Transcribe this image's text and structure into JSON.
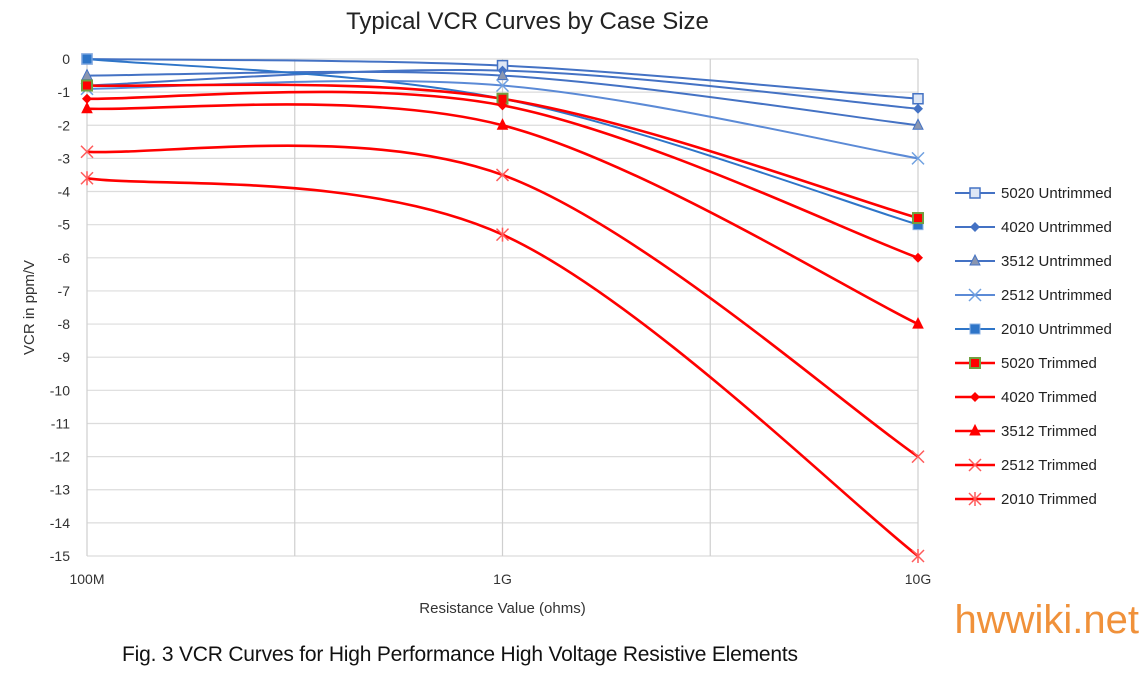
{
  "chart_data": {
    "type": "line",
    "title": "Typical VCR Curves by Case Size",
    "xlabel": "Resistance Value (ohms)",
    "ylabel": "VCR in ppm/V",
    "x": [
      "100M",
      "1G",
      "10G"
    ],
    "x_scale": "log",
    "ylim": [
      -15,
      0
    ],
    "yticks": [
      "0",
      "-1",
      "-2",
      "-3",
      "-4",
      "-5",
      "-6",
      "-7",
      "-8",
      "-9",
      "-10",
      "-11",
      "-12",
      "-13",
      "-14",
      "-15"
    ],
    "grid": true,
    "legend_position": "right",
    "series": [
      {
        "name": "5020 Untrimmed",
        "values": [
          0,
          -0.2,
          -1.2
        ],
        "color": "#4472c4",
        "marker": "square-open"
      },
      {
        "name": "4020 Untrimmed",
        "values": [
          -0.8,
          -0.35,
          -1.5
        ],
        "color": "#4472c4",
        "marker": "diamond"
      },
      {
        "name": "3512 Untrimmed",
        "values": [
          -0.5,
          -0.5,
          -2.0
        ],
        "color": "#4472c4",
        "marker": "triangle"
      },
      {
        "name": "2512 Untrimmed",
        "values": [
          -0.9,
          -0.8,
          -3.0
        ],
        "color": "#5b8ad6",
        "marker": "x"
      },
      {
        "name": "2010 Untrimmed",
        "values": [
          0,
          -1.2,
          -5.0
        ],
        "color": "#2e75c8",
        "marker": "square-star"
      },
      {
        "name": "5020 Trimmed",
        "values": [
          -0.8,
          -1.2,
          -4.8
        ],
        "color": "#ff0000",
        "marker": "square-green"
      },
      {
        "name": "4020 Trimmed",
        "values": [
          -1.2,
          -1.4,
          -6.0
        ],
        "color": "#ff0000",
        "marker": "diamond"
      },
      {
        "name": "3512 Trimmed",
        "values": [
          -1.5,
          -2.0,
          -8.0
        ],
        "color": "#ff0000",
        "marker": "triangle"
      },
      {
        "name": "2512 Trimmed",
        "values": [
          -2.8,
          -3.5,
          -12.0
        ],
        "color": "#ff0000",
        "marker": "x"
      },
      {
        "name": "2010 Trimmed",
        "values": [
          -3.6,
          -5.3,
          -15.0
        ],
        "color": "#ff0000",
        "marker": "star"
      }
    ]
  },
  "caption": "Fig. 3 VCR Curves for High Performance High Voltage Resistive Elements",
  "watermark": "hwwiki.net"
}
